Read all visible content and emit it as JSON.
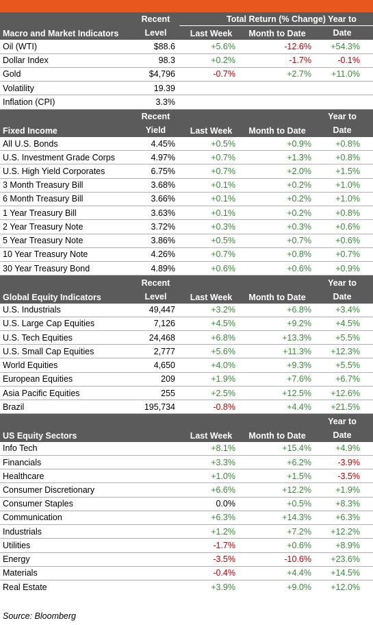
{
  "top_header": "Total Return (% Change)",
  "sections": [
    {
      "title": "Macro and Market Indicators",
      "level_header": [
        "Recent",
        "Level"
      ],
      "col_headers": [
        "Last Week",
        "Month to Date",
        [
          "Year to",
          "Date"
        ]
      ],
      "rows": [
        {
          "name": "Oil (WTI)",
          "level": "$88.6",
          "lw": "+5.6%",
          "mtd": "-12.6%",
          "ytd": "+54.3%"
        },
        {
          "name": "Dollar Index",
          "level": "98.3",
          "lw": "+0.2%",
          "mtd": "-1.7%",
          "ytd": "-0.1%"
        },
        {
          "name": "Gold",
          "level": "$4,796",
          "lw": "-0.7%",
          "mtd": "+2.7%",
          "ytd": "+11.0%"
        },
        {
          "name": "Volatility",
          "level": "19.39",
          "lw": "",
          "mtd": "",
          "ytd": ""
        },
        {
          "name": "Inflation (CPI)",
          "level": "3.3%",
          "lw": "",
          "mtd": "",
          "ytd": ""
        }
      ]
    },
    {
      "title": "Fixed Income",
      "level_header": [
        "Recent",
        "Yield"
      ],
      "col_headers": [
        "Last Week",
        "Month to Date",
        [
          "Year to",
          "Date"
        ]
      ],
      "rows": [
        {
          "name": "All U.S. Bonds",
          "level": "4.45%",
          "lw": "+0.5%",
          "mtd": "+0.9%",
          "ytd": "+0.8%"
        },
        {
          "name": "U.S. Investment Grade Corps",
          "level": "4.97%",
          "lw": "+0.7%",
          "mtd": "+1.3%",
          "ytd": "+0.8%"
        },
        {
          "name": "U.S. High Yield Corporates",
          "level": "6.75%",
          "lw": "+0.7%",
          "mtd": "+2.0%",
          "ytd": "+1.5%"
        },
        {
          "name": "3 Month Treasury Bill",
          "level": "3.68%",
          "lw": "+0.1%",
          "mtd": "+0.2%",
          "ytd": "+1.0%"
        },
        {
          "name": "6 Month Treasury Bill",
          "level": "3.66%",
          "lw": "+0.1%",
          "mtd": "+0.2%",
          "ytd": "+1.0%"
        },
        {
          "name": "1 Year Treasury Bill",
          "level": "3.63%",
          "lw": "+0.1%",
          "mtd": "+0.2%",
          "ytd": "+0.8%"
        },
        {
          "name": "2 Year Treasury Note",
          "level": "3.72%",
          "lw": "+0.3%",
          "mtd": "+0.3%",
          "ytd": "+0.6%"
        },
        {
          "name": "5 Year Treasury Note",
          "level": "3.86%",
          "lw": "+0.5%",
          "mtd": "+0.7%",
          "ytd": "+0.6%"
        },
        {
          "name": "10 Year Treasury Note",
          "level": "4.26%",
          "lw": "+0.7%",
          "mtd": "+0.8%",
          "ytd": "+0.7%"
        },
        {
          "name": "30 Year Treasury Bond",
          "level": "4.89%",
          "lw": "+0.6%",
          "mtd": "+0.6%",
          "ytd": "+0.9%"
        }
      ]
    },
    {
      "title": "Global Equity Indicators",
      "level_header": [
        "Recent",
        "Level"
      ],
      "col_headers": [
        "Last Week",
        "Month to Date",
        [
          "Year to",
          "Date"
        ]
      ],
      "rows": [
        {
          "name": "U.S. Industrials",
          "level": "49,447",
          "lw": "+3.2%",
          "mtd": "+6.8%",
          "ytd": "+3.4%"
        },
        {
          "name": "U.S. Large Cap Equities",
          "level": "7,126",
          "lw": "+4.5%",
          "mtd": "+9.2%",
          "ytd": "+4.5%"
        },
        {
          "name": "U.S. Tech Equities",
          "level": "24,468",
          "lw": "+6.8%",
          "mtd": "+13.3%",
          "ytd": "+5.5%"
        },
        {
          "name": "U.S. Small Cap Equities",
          "level": "2,777",
          "lw": "+5.6%",
          "mtd": "+11.3%",
          "ytd": "+12.3%"
        },
        {
          "name": "World Equities",
          "level": "4,650",
          "lw": "+4.0%",
          "mtd": "+9.3%",
          "ytd": "+5.5%"
        },
        {
          "name": "European Equities",
          "level": "209",
          "lw": "+1.9%",
          "mtd": "+7.6%",
          "ytd": "+6.7%"
        },
        {
          "name": "Asia Pacific Equities",
          "level": "255",
          "lw": "+2.5%",
          "mtd": "+12.5%",
          "ytd": "+12.6%"
        },
        {
          "name": "Brazil",
          "level": "195,734",
          "lw": "-0.8%",
          "mtd": "+4.4%",
          "ytd": "+21.5%"
        }
      ]
    },
    {
      "title": "US Equity Sectors",
      "level_header": [
        "",
        ""
      ],
      "col_headers": [
        "Last Week",
        "Month to Date",
        [
          "Year to",
          "Date"
        ]
      ],
      "rows": [
        {
          "name": "Info Tech",
          "level": "",
          "lw": "+8.1%",
          "mtd": "+15.4%",
          "ytd": "+4.9%"
        },
        {
          "name": "Financials",
          "level": "",
          "lw": "+3.3%",
          "mtd": "+6.2%",
          "ytd": "-3.9%"
        },
        {
          "name": "Healthcare",
          "level": "",
          "lw": "+1.0%",
          "mtd": "+1.5%",
          "ytd": "-3.5%"
        },
        {
          "name": "Consumer Discretionary",
          "level": "",
          "lw": "+6.6%",
          "mtd": "+12.2%",
          "ytd": "+1.9%"
        },
        {
          "name": "Consumer Staples",
          "level": "",
          "lw": "0.0%",
          "mtd": "+0.5%",
          "ytd": "+8.3%"
        },
        {
          "name": "Communication",
          "level": "",
          "lw": "+6.3%",
          "mtd": "+14.3%",
          "ytd": "+6.3%"
        },
        {
          "name": "Industrials",
          "level": "",
          "lw": "+1.2%",
          "mtd": "+7.2%",
          "ytd": "+12.2%"
        },
        {
          "name": "Utilities",
          "level": "",
          "lw": "-1.7%",
          "mtd": "+0.6%",
          "ytd": "+8.9%"
        },
        {
          "name": "Energy",
          "level": "",
          "lw": "-3.5%",
          "mtd": "-10.6%",
          "ytd": "+23.6%"
        },
        {
          "name": "Materials",
          "level": "",
          "lw": "-0.4%",
          "mtd": "+4.4%",
          "ytd": "+14.5%"
        },
        {
          "name": "Real Estate",
          "level": "",
          "lw": "+3.9%",
          "mtd": "+9.0%",
          "ytd": "+12.0%"
        }
      ]
    }
  ],
  "source": "Source: Bloomberg",
  "colors": {
    "accent_bar": "#E8571E",
    "header_bg": "#5b5b5b",
    "positive": "#3a8a3a",
    "negative": "#c00000"
  }
}
